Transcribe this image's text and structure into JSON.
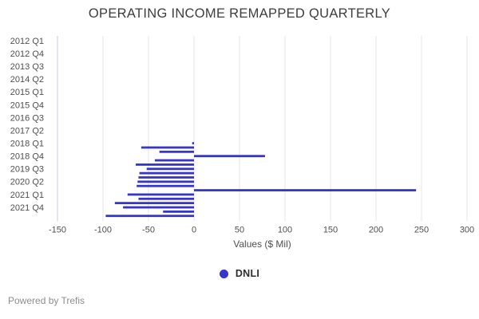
{
  "title": "OPERATING INCOME REMAPPED QUARTERLY",
  "legend": {
    "label": "DNLI",
    "color": "#3734cb"
  },
  "footer": {
    "text": "Powered by Trefis"
  },
  "chart_data": {
    "type": "bar",
    "orientation": "horizontal",
    "title": "OPERATING INCOME REMAPPED QUARTERLY",
    "xlabel": "Values ($ Mil)",
    "ylabel": "",
    "xlim": [
      -150,
      300
    ],
    "x_ticks": [
      -150,
      -100,
      -50,
      0,
      50,
      100,
      150,
      200,
      250,
      300
    ],
    "grid": true,
    "legend_position": "bottom",
    "y_tick_every": 3,
    "y_tick_labels": [
      "2012 Q1",
      "2012 Q4",
      "2013 Q3",
      "2014 Q2",
      "2015 Q1",
      "2015 Q4",
      "2016 Q3",
      "2017 Q2",
      "2018 Q1",
      "2018 Q4",
      "2019 Q3",
      "2020 Q2",
      "2021 Q1",
      "2021 Q4"
    ],
    "categories": [
      "2012 Q1",
      "2012 Q2",
      "2012 Q3",
      "2012 Q4",
      "2013 Q1",
      "2013 Q2",
      "2013 Q3",
      "2013 Q4",
      "2014 Q1",
      "2014 Q2",
      "2014 Q3",
      "2014 Q4",
      "2015 Q1",
      "2015 Q2",
      "2015 Q3",
      "2015 Q4",
      "2016 Q1",
      "2016 Q2",
      "2016 Q3",
      "2016 Q4",
      "2017 Q1",
      "2017 Q2",
      "2017 Q3",
      "2017 Q4",
      "2018 Q1",
      "2018 Q2",
      "2018 Q3",
      "2018 Q4",
      "2019 Q1",
      "2019 Q2",
      "2019 Q3",
      "2019 Q4",
      "2020 Q1",
      "2020 Q2",
      "2020 Q3",
      "2020 Q4",
      "2021 Q1",
      "2021 Q2",
      "2021 Q3",
      "2021 Q4",
      "2022 Q1",
      "2022 Q2"
    ],
    "series": [
      {
        "name": "DNLI",
        "color": "#3734cb",
        "values": [
          null,
          null,
          null,
          null,
          null,
          null,
          null,
          null,
          null,
          null,
          null,
          null,
          null,
          null,
          null,
          null,
          null,
          null,
          null,
          null,
          null,
          null,
          null,
          null,
          -2,
          -58,
          -38,
          78,
          -43,
          -64,
          -52,
          -60,
          -61,
          -62,
          -63,
          244,
          -73,
          -61,
          -87,
          -78,
          -34,
          -97
        ]
      }
    ]
  }
}
